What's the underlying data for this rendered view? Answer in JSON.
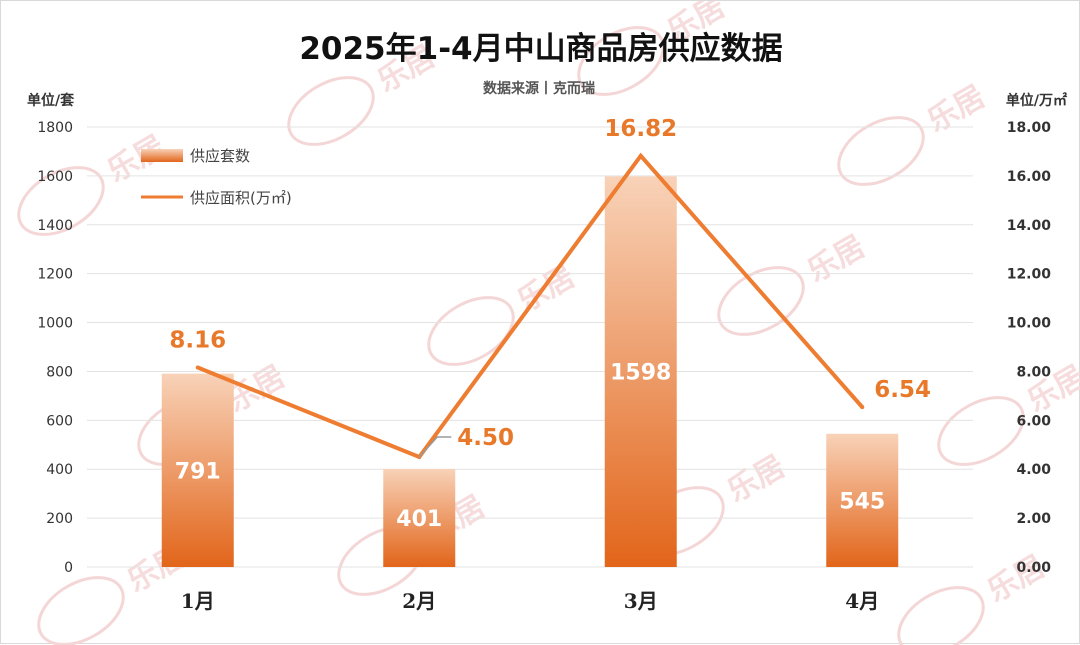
{
  "title": "2025年1-4月中山商品房供应数据",
  "subtitle": "数据来源丨克而瑞",
  "left_unit": "单位/套",
  "right_unit": "单位/万㎡",
  "watermark": "乐居",
  "colors": {
    "bar_top": "#f8d2b8",
    "bar_bottom": "#e2651a",
    "line": "#ee7d31",
    "line_label": "#e8792a"
  },
  "chart_data": {
    "type": "bar",
    "categories": [
      "1月",
      "2月",
      "3月",
      "4月"
    ],
    "series": [
      {
        "name": "供应套数",
        "axis": "left",
        "type": "bar",
        "values": [
          791,
          401,
          1598,
          545
        ]
      },
      {
        "name": "供应面积(万㎡)",
        "axis": "right",
        "type": "line",
        "values": [
          8.16,
          4.5,
          16.82,
          6.54
        ]
      }
    ],
    "y_left": {
      "min": 0,
      "max": 1800,
      "ticks": [
        "0",
        "200",
        "400",
        "600",
        "800",
        "1000",
        "1200",
        "1400",
        "1600",
        "1800"
      ]
    },
    "y_right": {
      "min": 0,
      "max": 18,
      "ticks": [
        "0.00",
        "2.00",
        "4.00",
        "6.00",
        "8.00",
        "10.00",
        "12.00",
        "14.00",
        "16.00",
        "18.00"
      ]
    },
    "bar_labels": [
      "791",
      "401",
      "1598",
      "545"
    ],
    "line_labels": [
      "8.16",
      "4.50",
      "16.82",
      "6.54"
    ],
    "grid": true,
    "legend": "top-left"
  }
}
